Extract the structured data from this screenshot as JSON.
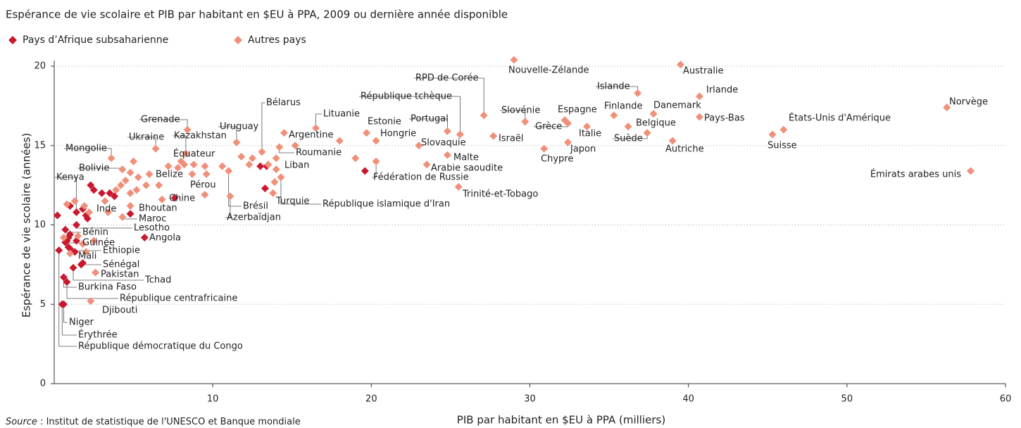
{
  "chart_data": {
    "type": "scatter",
    "title": "Espérance de vie scolaire et PIB par habitant en $EU à PPA, 2009 ou dernière année disponible",
    "x_label": "PIB par habitant en $EU à PPA (milliers)",
    "y_label": "Espérance de vie scolaire (années)",
    "source": [
      "Source",
      " : Institut de statistique de l'UNESCO et Banque mondiale"
    ],
    "xlim": [
      0,
      60
    ],
    "ylim": [
      0,
      20
    ],
    "xticks": [
      10,
      20,
      30,
      40,
      50,
      60
    ],
    "yticks": [
      0,
      5,
      10,
      15,
      20
    ],
    "grid": true,
    "legend": "top-left",
    "series": [
      {
        "name": "Pays d’Afrique subsaharienne",
        "color": "#c8192e",
        "x": [
          1.4,
          1.4,
          0.7,
          0.8,
          5.7,
          0.9,
          1.0,
          1.8,
          1.2,
          0.6,
          0.8,
          0.6,
          0.5,
          0.3,
          2.3,
          2.5,
          3.0,
          3.5,
          3.8,
          7.6,
          1.0,
          1.8,
          2.0,
          0.2,
          4.8,
          13.0,
          13.4,
          13.3,
          19.6,
          2.1,
          1.4,
          0.9,
          1.0,
          0.7,
          1.3,
          1.7
        ],
        "y": [
          10.8,
          10.0,
          9.7,
          9.0,
          9.2,
          8.6,
          8.5,
          7.6,
          7.3,
          6.7,
          6.4,
          5.0,
          5.0,
          8.4,
          12.5,
          12.2,
          12.0,
          12.0,
          11.8,
          11.7,
          11.2,
          11.0,
          10.6,
          10.6,
          10.7,
          13.7,
          13.7,
          12.3,
          13.4,
          10.4,
          9.0,
          9.2,
          9.4,
          8.9,
          8.3,
          7.5
        ],
        "labels": [
          "Kenya",
          "Lesotho",
          "Bénin",
          "Guinée",
          "Angola",
          "Éthiopie",
          "Mali",
          "Sénégal",
          "Tchad",
          "Burkina Faso",
          "République centrafricaine",
          "Niger",
          "Érythrée",
          "République démocratique du Congo",
          null,
          null,
          null,
          null,
          null,
          null,
          null,
          null,
          null,
          null,
          null,
          null,
          null,
          null,
          null,
          null,
          null,
          null,
          null,
          null,
          null,
          null
        ]
      },
      {
        "name": "Autres pays",
        "color": "#f0907a",
        "x": [
          56.3,
          57.8,
          45.3,
          46.0,
          40.7,
          40.7,
          39.5,
          29.0,
          36.8,
          37.8,
          39.0,
          36.2,
          37.4,
          35.3,
          32.2,
          32.4,
          33.6,
          32.4,
          30.9,
          29.7,
          27.7,
          27.1,
          25.6,
          24.8,
          23.0,
          24.8,
          23.5,
          25.5,
          20.3,
          19.7,
          16.5,
          14.2,
          20.3,
          14.5,
          13.1,
          11.5,
          14.0,
          14.3,
          13.8,
          11.0,
          11.1,
          8.7,
          8.2,
          8.3,
          6.4,
          8.4,
          6.6,
          6.8,
          3.6,
          4.3,
          3.4,
          4.8,
          4.3,
          2.6,
          2.3,
          0.8,
          1.3,
          1.9,
          2.2,
          3.2,
          3.9,
          4.2,
          4.8,
          5.2,
          5.8,
          6.0,
          5.3,
          4.5,
          5.0,
          4.8,
          7.2,
          7.8,
          8.0,
          8.8,
          9.5,
          9.6,
          10.6,
          12.3,
          11.8,
          12.5,
          13.5,
          14.0,
          15.2,
          18.0,
          19.0,
          9.5,
          13.9,
          1.8,
          2.5,
          1.5,
          2.0,
          0.6,
          1.0
        ],
        "y": [
          17.4,
          13.4,
          15.7,
          16.0,
          16.8,
          18.1,
          20.1,
          20.4,
          18.3,
          17.0,
          15.3,
          16.2,
          15.8,
          16.9,
          16.6,
          16.4,
          16.2,
          15.2,
          14.8,
          16.5,
          15.6,
          16.9,
          15.7,
          15.9,
          15.0,
          14.4,
          13.8,
          12.4,
          15.3,
          15.8,
          16.1,
          14.9,
          14.0,
          15.8,
          14.6,
          15.2,
          13.5,
          13.0,
          12.0,
          13.4,
          11.8,
          13.2,
          13.8,
          14.5,
          14.8,
          16.0,
          12.5,
          11.6,
          14.2,
          13.5,
          10.8,
          11.2,
          10.5,
          7.0,
          5.2,
          11.3,
          11.5,
          11.2,
          10.8,
          11.5,
          12.2,
          12.5,
          12.0,
          12.2,
          12.5,
          13.2,
          13.0,
          12.8,
          14.0,
          13.3,
          13.7,
          13.6,
          14.0,
          13.8,
          13.7,
          13.2,
          13.7,
          13.8,
          14.3,
          14.2,
          13.8,
          14.2,
          15.0,
          15.3,
          14.2,
          11.9,
          12.7,
          8.8,
          9.0,
          9.3,
          8.3,
          9.2,
          8.2
        ],
        "labels": [
          "Norvège",
          "Émirats arabes unis",
          "Suisse",
          "États-Unis d'Amérique",
          "Pays-Bas",
          "Irlande",
          "Australie",
          "Nouvelle-Zélande",
          "Islande",
          "Danemark",
          "Autriche",
          "Belgique",
          "Suède",
          "Finlande",
          "Espagne",
          "Grèce",
          "Italie",
          "Japon",
          "Chypre",
          "Slovénie",
          "Israël",
          "RPD de Corée",
          "République tchèque",
          "Portugal",
          "Slovaquie",
          "Malte",
          "Arabie saoudite",
          "Trinité-et-Tobago",
          "Hongrie",
          "Estonie",
          "Lituanie",
          "Roumanie",
          "Fédération de Russie",
          "Argentine",
          "Bélarus",
          "Uruguay",
          "Liban",
          "République islamique d'Iran",
          "Turquie",
          "Brésil",
          "Azerbaïdjan",
          "Pérou",
          "Équateur",
          "Kazakhstan",
          "Ukraine",
          "Grenade",
          "Belize",
          "Chine",
          "Mongolie",
          "Bolivie",
          "Inde",
          "Bhoutan",
          "Maroc",
          "Pakistan",
          "Djibouti",
          null,
          null,
          null,
          null,
          null,
          null,
          null,
          null,
          null,
          null,
          null,
          null,
          null,
          null,
          null,
          null,
          null,
          null,
          null,
          null,
          null,
          null,
          null,
          null,
          null,
          null,
          null,
          null,
          null,
          null,
          null,
          null,
          null,
          null,
          null,
          null,
          null,
          null
        ]
      }
    ]
  }
}
